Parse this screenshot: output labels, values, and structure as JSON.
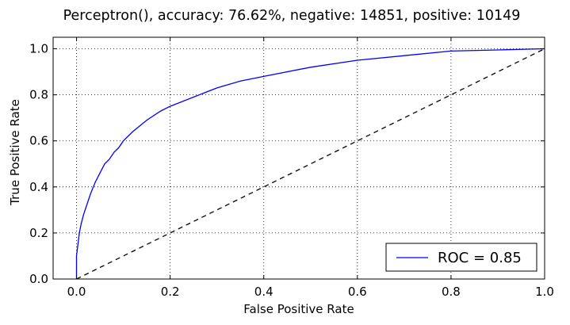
{
  "chart_data": {
    "type": "line",
    "title": "Perceptron(), accuracy: 76.62%, negative: 14851, positive: 10149",
    "xlabel": "False Positive Rate",
    "ylabel": "True Positive Rate",
    "xlim": [
      -0.05,
      1.0
    ],
    "ylim": [
      0.0,
      1.05
    ],
    "xticks": [
      "0.0",
      "0.2",
      "0.4",
      "0.6",
      "0.8",
      "1.0"
    ],
    "yticks": [
      "0.0",
      "0.2",
      "0.4",
      "0.6",
      "0.8",
      "1.0"
    ],
    "grid": true,
    "legend_location": "lower-right",
    "series": [
      {
        "name": "ROC = 0.85",
        "color": "#0000ff",
        "style": "solid",
        "x": [
          0.0,
          0.0,
          0.003,
          0.006,
          0.01,
          0.015,
          0.02,
          0.03,
          0.04,
          0.05,
          0.06,
          0.07,
          0.08,
          0.09,
          0.1,
          0.12,
          0.15,
          0.18,
          0.2,
          0.25,
          0.3,
          0.35,
          0.4,
          0.5,
          0.6,
          0.7,
          0.8,
          0.9,
          1.0
        ],
        "y": [
          0.0,
          0.1,
          0.15,
          0.2,
          0.24,
          0.28,
          0.31,
          0.37,
          0.42,
          0.46,
          0.5,
          0.52,
          0.55,
          0.57,
          0.6,
          0.64,
          0.69,
          0.73,
          0.75,
          0.79,
          0.83,
          0.86,
          0.88,
          0.92,
          0.95,
          0.97,
          0.99,
          0.995,
          1.0
        ]
      },
      {
        "name": "",
        "color": "#000000",
        "style": "dashed",
        "x": [
          0.0,
          1.0
        ],
        "y": [
          0.0,
          1.0
        ]
      }
    ]
  }
}
